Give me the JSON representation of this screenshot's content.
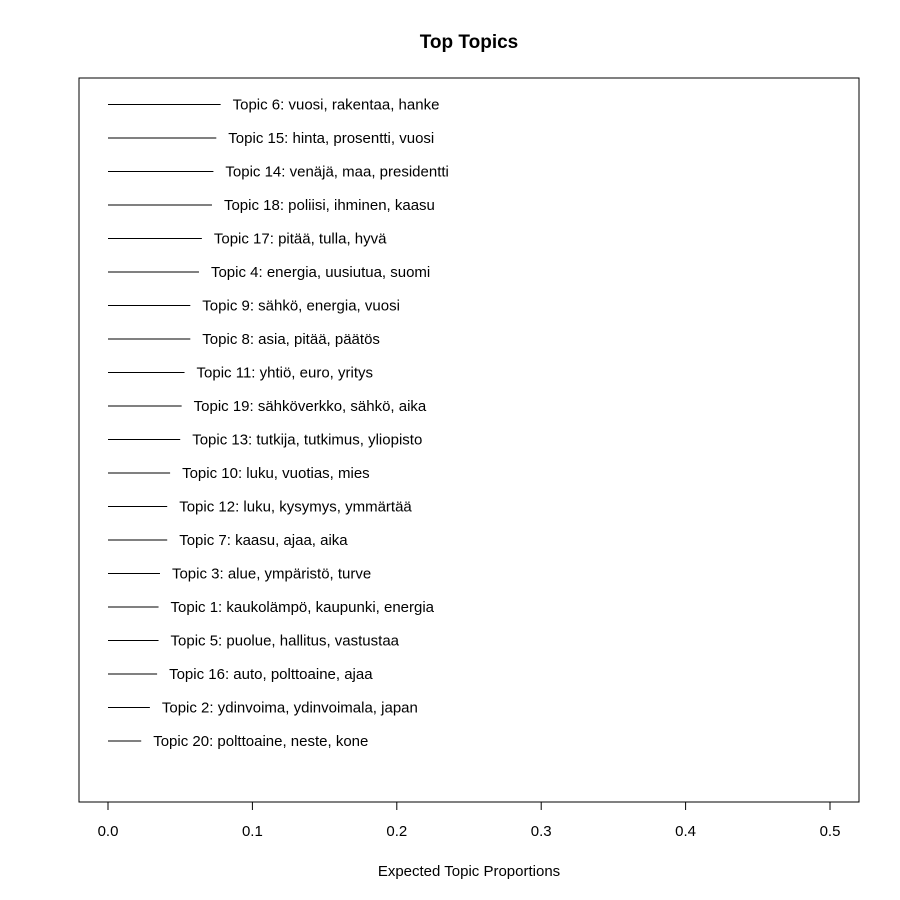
{
  "chart_data": {
    "type": "bar",
    "orientation": "horizontal",
    "title": "Top Topics",
    "xlabel": "Expected Topic Proportions",
    "ylabel": "",
    "xlim": [
      0,
      0.5
    ],
    "xticks": [
      "0.0",
      "0.1",
      "0.2",
      "0.3",
      "0.4",
      "0.5"
    ],
    "grid": false,
    "categories": [
      "Topic 6: vuosi, rakentaa, hanke",
      "Topic 15: hinta, prosentti, vuosi",
      "Topic 14: venäjä, maa, presidentti",
      "Topic 18: poliisi, ihminen, kaasu",
      "Topic 17: pitää, tulla, hyvä",
      "Topic 4: energia, uusiutua, suomi",
      "Topic 9: sähkö, energia, vuosi",
      "Topic 8: asia, pitää, päätös",
      "Topic 11: yhtiö, euro, yritys",
      "Topic 19: sähköverkko, sähkö, aika",
      "Topic 13: tutkija, tutkimus, yliopisto",
      "Topic 10: luku, vuotias, mies",
      "Topic 12: luku, kysymys, ymmärtää",
      "Topic 7: kaasu, ajaa, aika",
      "Topic 3: alue, ympäristö, turve",
      "Topic 1: kaukolämpö, kaupunki, energia",
      "Topic 5: puolue, hallitus, vastustaa",
      "Topic 16: auto, polttoaine, ajaa",
      "Topic 2: ydinvoima, ydinvoimala, japan",
      "Topic 20: polttoaine, neste, kone"
    ],
    "values": [
      0.078,
      0.075,
      0.073,
      0.072,
      0.065,
      0.063,
      0.057,
      0.057,
      0.053,
      0.051,
      0.05,
      0.043,
      0.041,
      0.041,
      0.036,
      0.035,
      0.035,
      0.034,
      0.029,
      0.023
    ]
  }
}
